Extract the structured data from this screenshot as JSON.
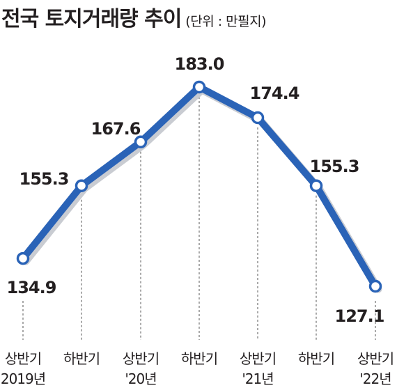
{
  "chart_data": {
    "type": "line",
    "title": "전국 토지거래량 추이",
    "unit": "(단위 : 만필지)",
    "categories": [
      {
        "period": "상반기",
        "year": "2019년"
      },
      {
        "period": "하반기",
        "year": ""
      },
      {
        "period": "상반기",
        "year": "'20년"
      },
      {
        "period": "하반기",
        "year": ""
      },
      {
        "period": "상반기",
        "year": "'21년"
      },
      {
        "period": "하반기",
        "year": ""
      },
      {
        "period": "상반기",
        "year": "'22년"
      }
    ],
    "values": [
      134.9,
      155.3,
      167.6,
      183.0,
      174.4,
      155.3,
      127.1
    ],
    "value_labels": [
      "134.9",
      "155.3",
      "167.6",
      "183.0",
      "174.4",
      "155.3",
      "127.1"
    ],
    "ylim": [
      127.1,
      183.0
    ],
    "grid": false,
    "colors": {
      "line": "#2a63b7",
      "shadow": "#c9ccd2",
      "marker_fill": "#ffffff",
      "guide": "#555555"
    }
  }
}
